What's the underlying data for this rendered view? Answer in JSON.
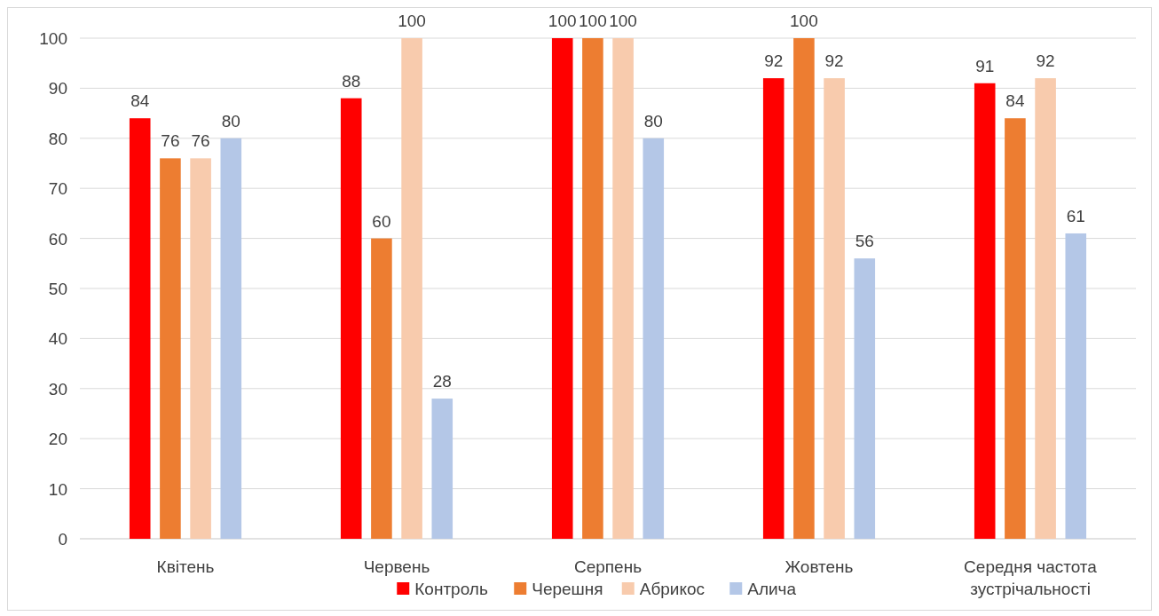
{
  "chart_data": {
    "type": "bar",
    "categories": [
      "Квітень",
      "Червень",
      "Серпень",
      "Жовтень",
      "Середня частота зустрічальності"
    ],
    "series": [
      {
        "name": "Контроль",
        "color": "#ff0000",
        "values": [
          84,
          88,
          100,
          92,
          91
        ]
      },
      {
        "name": "Черешня",
        "color": "#ed7d31",
        "values": [
          76,
          60,
          100,
          100,
          84
        ]
      },
      {
        "name": "Абрикос",
        "color": "#f8cbad",
        "values": [
          76,
          100,
          100,
          92,
          92
        ]
      },
      {
        "name": "Алича",
        "color": "#b4c7e7",
        "values": [
          80,
          28,
          80,
          56,
          61
        ]
      }
    ],
    "ylim": [
      0,
      100
    ],
    "yticks": [
      0,
      10,
      20,
      30,
      40,
      50,
      60,
      70,
      80,
      90,
      100
    ],
    "grid": "y",
    "legend": "bottom",
    "data_labels": true
  }
}
